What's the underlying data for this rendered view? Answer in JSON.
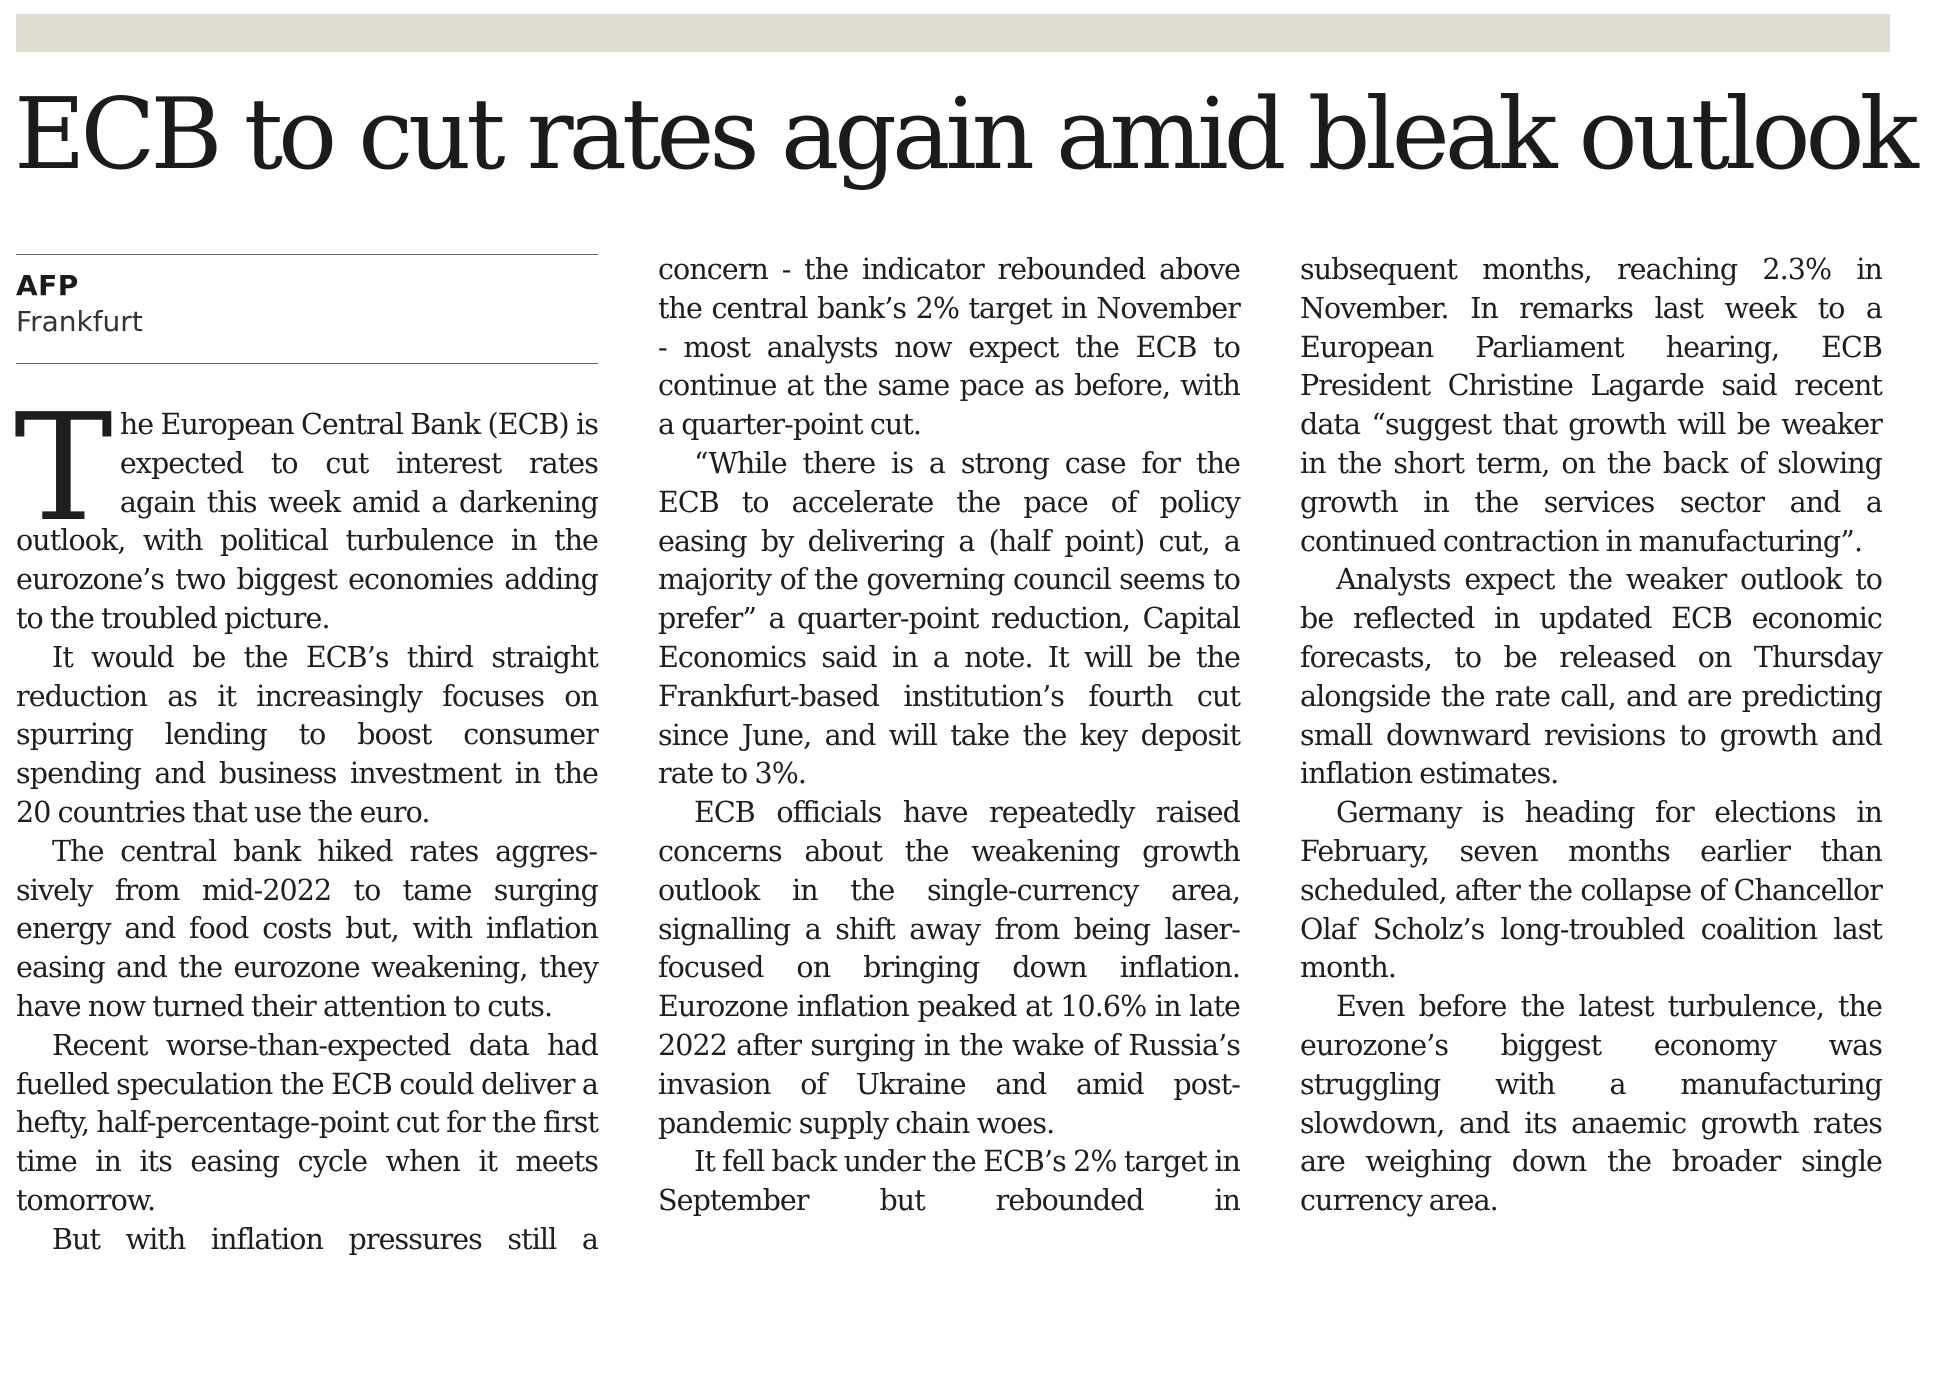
{
  "headline": "ECB to cut rates again amid bleak outlook",
  "byline": {
    "agency": "AFP",
    "location": "Frankfurt"
  },
  "article": {
    "drop_cap": "T",
    "p1_rest": "he European Central Bank (ECB) is expected to cut interest rates again this week amid a darken­ing outlook, with political turbulence in the eurozone’s two biggest econo­mies adding to the troubled picture.",
    "p2": "It would be the ECB’s third straight reduction as it increasingly focuses on spurring lending to boost consumer spending and business investment in the 20 countries that use the euro.",
    "p3": "The central bank hiked rates aggres­sively from mid-2022 to tame surging energy and food costs but, with infla­tion easing and the eurozone weaken­ing, they have now turned their atten­tion to cuts.",
    "p4": "Recent worse-than-expected data had fuelled speculation the ECB could deliver a hefty, half-percentage-point cut for the first time in its easing cycle when it meets tomorrow.",
    "p5_part1": "But with inflation pressures still a",
    "p5_part2": "concern - the indicator rebounded above the central bank’s 2% target in November - most analysts now expect the ECB to continue at the same pace as before, with a quarter-point cut.",
    "p6": "“While there is a strong case for the ECB to accelerate the pace of policy easing by delivering a (half point) cut, a majority of the govern­ing council seems to prefer” a quar­ter-point reduction, Capital Eco­nomics said in a note. It will be the Frankfurt-based institution’s fourth cut since June, and will take the key deposit rate to 3%.",
    "p7": "ECB officials have repeatedly raised concerns about the weakening growth outlook in the single-currency area, signalling a shift away from being laser-focused on bringing down in­flation. Eurozone inflation peaked at 10.6% in late 2022 after surging in the wake of Russia’s invasion of Ukraine and amid post-pandemic supply chain woes.",
    "p8_part1": "It fell back under the ECB’s 2% tar­get in September but rebounded in",
    "p8_part2": "subsequent months, reaching 2.3% in November. In remarks last week to a European Parliament hearing, ECB President Christine Lagarde said re­cent data “suggest that growth will be weaker in the short term, on the back of slowing growth in the services sector and a continued contraction in manufacturing”.",
    "p9": "Analysts expect the weaker out­look to be reflected in updated ECB economic forecasts, to be released on Thursday alongside the rate call, and are predicting small downward revi­sions to growth and inflation esti­mates.",
    "p10": "Germany is heading for elections in February, seven months earlier than scheduled, after the collapse of Chan­cellor Olaf Scholz’s long-troubled co­alition last month.",
    "p11": "Even before the latest turbulence, the eurozone’s biggest economy was struggling with a manufacturing slowdown, and its anaemic growth rates are weighing down the broader single currency area."
  }
}
